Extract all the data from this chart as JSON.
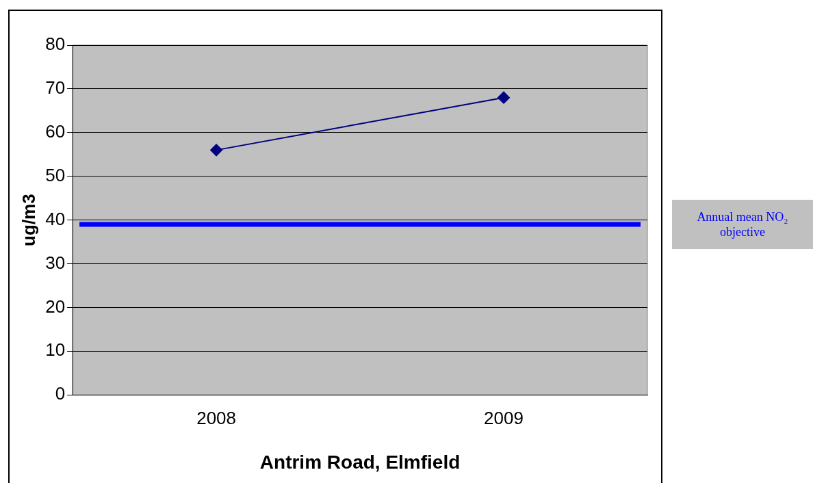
{
  "chart_data": {
    "type": "line",
    "xlabel": "Antrim Road, Elmfield",
    "ylabel": "ug/m3",
    "categories": [
      "2008",
      "2009"
    ],
    "series": [
      {
        "color": "#000080",
        "values": [
          56,
          68
        ]
      }
    ],
    "ylim": [
      0,
      80
    ],
    "yticks": [
      0,
      10,
      20,
      30,
      40,
      50,
      60,
      70,
      80
    ],
    "grid": "y",
    "marker": "diamond",
    "legend": false,
    "ref_lines": [
      {
        "axis": "y",
        "value": 39,
        "label": "Annual mean NO₂ objective",
        "color": "#0000ff"
      }
    ]
  }
}
